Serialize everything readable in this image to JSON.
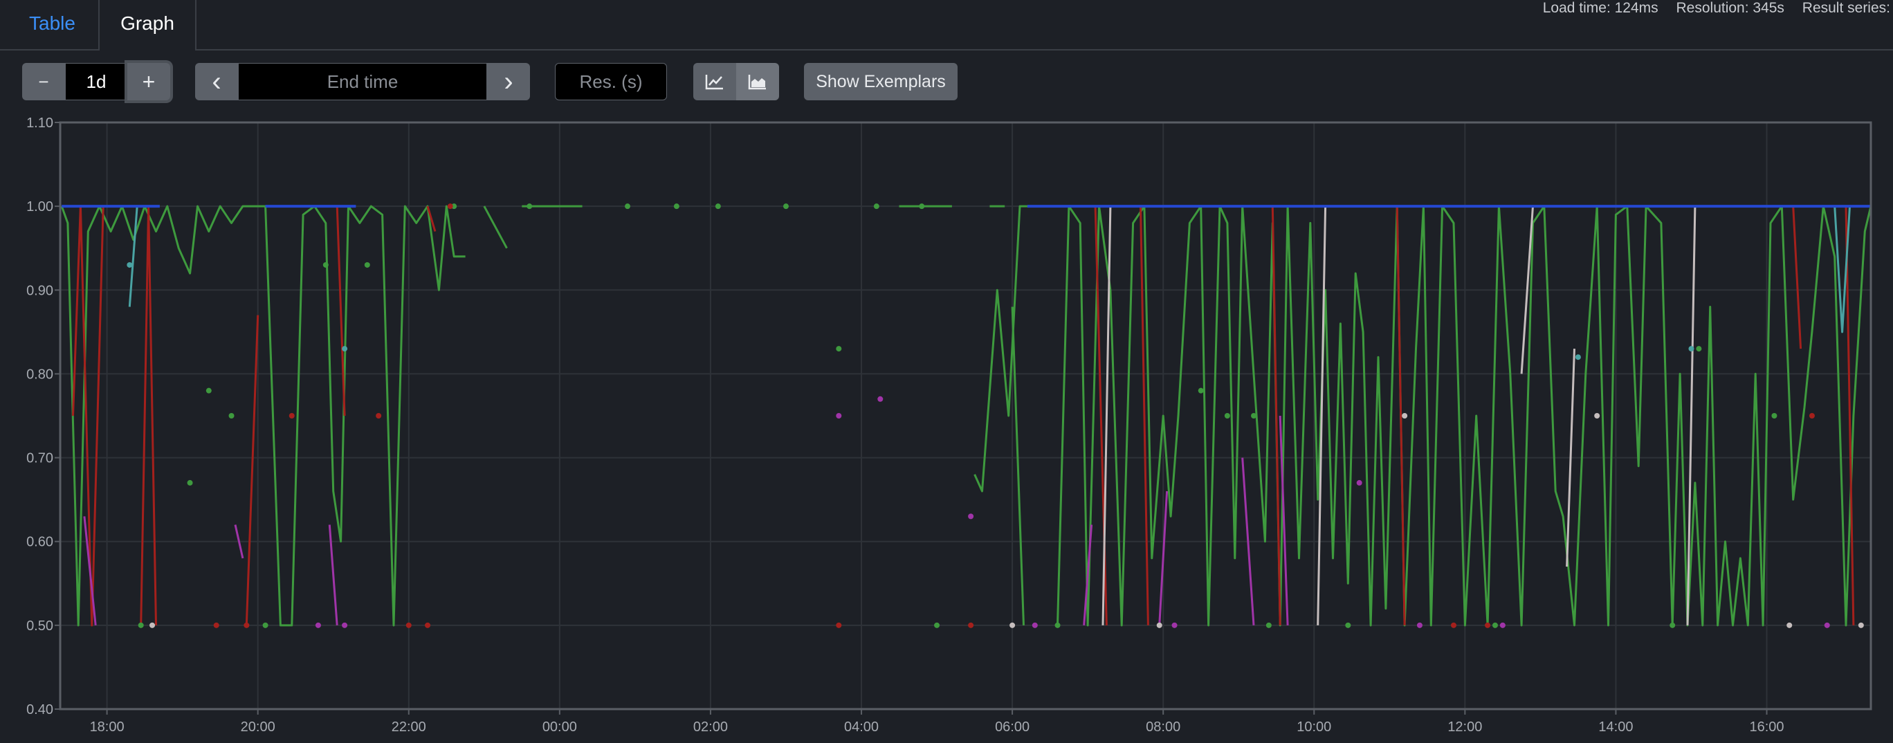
{
  "tabs": [
    {
      "label": "Table",
      "active": false
    },
    {
      "label": "Graph",
      "active": true
    }
  ],
  "stats": {
    "load_time": "Load time: 124ms",
    "resolution": "Resolution: 345s",
    "result_series": "Result series:"
  },
  "toolbar": {
    "range_value": "1d",
    "end_time_placeholder": "End time",
    "resolution_placeholder": "Res. (s)",
    "exemplars_label": "Show Exemplars",
    "minus_glyph": "−",
    "plus_glyph": "+",
    "prev_glyph": "‹",
    "next_glyph": "›"
  },
  "chart_data": {
    "type": "line",
    "ylim": [
      0.4,
      1.1
    ],
    "y_ticks": [
      "0.40",
      "0.50",
      "0.60",
      "0.70",
      "0.80",
      "0.90",
      "1.00",
      "1.10"
    ],
    "x_ticks": [
      "18:00",
      "20:00",
      "22:00",
      "00:00",
      "02:00",
      "04:00",
      "06:00",
      "08:00",
      "10:00",
      "12:00",
      "14:00",
      "16:00"
    ],
    "x_range_hours": [
      17.38,
      41.38
    ],
    "series": [
      {
        "color": "#3e9a3e",
        "points": [
          [
            17.4,
            1.0
          ],
          [
            17.48,
            0.98
          ],
          [
            17.62,
            0.5
          ],
          [
            17.75,
            0.97
          ],
          [
            17.9,
            1.0
          ],
          [
            18.05,
            0.97
          ],
          [
            18.2,
            1.0
          ],
          [
            18.35,
            0.96
          ],
          [
            18.5,
            1.0
          ],
          [
            18.65,
            0.97
          ],
          [
            18.8,
            1.0
          ],
          [
            18.95,
            0.95
          ],
          [
            19.1,
            0.92
          ],
          [
            19.2,
            1.0
          ],
          [
            19.35,
            0.97
          ],
          [
            19.5,
            1.0
          ],
          [
            19.65,
            0.98
          ],
          [
            19.8,
            1.0
          ],
          [
            20.1,
            1.0
          ],
          [
            20.3,
            0.5
          ],
          [
            20.45,
            0.5
          ],
          [
            20.6,
            0.99
          ],
          [
            20.75,
            1.0
          ],
          [
            20.9,
            0.98
          ],
          [
            21.0,
            0.66
          ],
          [
            21.1,
            0.6
          ],
          [
            21.2,
            1.0
          ],
          [
            21.35,
            0.98
          ],
          [
            21.5,
            1.0
          ],
          [
            21.65,
            0.99
          ],
          [
            21.8,
            0.5
          ],
          [
            21.95,
            1.0
          ],
          [
            22.1,
            0.98
          ],
          [
            22.25,
            1.0
          ],
          [
            22.4,
            0.9
          ],
          [
            22.5,
            1.0
          ],
          [
            22.6,
            0.94
          ],
          [
            22.75,
            0.94
          ],
          null,
          [
            23.0,
            1.0
          ],
          [
            23.3,
            0.95
          ],
          null,
          [
            23.5,
            1.0
          ],
          [
            24.3,
            1.0
          ],
          null,
          [
            28.5,
            1.0
          ],
          [
            29.2,
            1.0
          ],
          null,
          [
            29.7,
            1.0
          ],
          [
            29.9,
            1.0
          ],
          null,
          [
            30.0,
            0.88
          ],
          [
            30.15,
            0.5
          ],
          null,
          [
            30.3,
            1.0
          ],
          [
            30.6,
            1.0
          ],
          null,
          [
            29.5,
            0.68
          ],
          [
            29.6,
            0.66
          ],
          [
            29.8,
            0.9
          ],
          [
            29.95,
            0.75
          ],
          [
            30.1,
            1.0
          ],
          [
            30.4,
            1.0
          ],
          null,
          [
            30.6,
            0.5
          ],
          [
            30.75,
            1.0
          ],
          [
            30.9,
            0.98
          ],
          [
            31.0,
            0.5
          ],
          [
            31.15,
            1.0
          ],
          [
            31.3,
            0.9
          ],
          [
            31.45,
            0.5
          ],
          [
            31.6,
            0.98
          ],
          [
            31.75,
            1.0
          ],
          [
            31.85,
            0.58
          ],
          [
            32.0,
            0.75
          ],
          [
            32.1,
            0.63
          ],
          [
            32.2,
            0.75
          ],
          [
            32.35,
            0.98
          ],
          [
            32.5,
            1.0
          ],
          [
            32.6,
            0.5
          ],
          [
            32.75,
            1.0
          ],
          [
            32.85,
            0.98
          ],
          [
            32.95,
            0.58
          ],
          [
            33.05,
            1.0
          ],
          [
            33.2,
            0.8
          ],
          [
            33.35,
            0.6
          ],
          [
            33.45,
            0.98
          ],
          [
            33.55,
            0.5
          ],
          [
            33.65,
            1.0
          ],
          [
            33.8,
            0.58
          ],
          [
            33.95,
            0.98
          ],
          [
            34.05,
            0.65
          ],
          [
            34.15,
            0.9
          ],
          [
            34.25,
            0.58
          ],
          [
            34.35,
            0.86
          ],
          [
            34.45,
            0.55
          ],
          [
            34.55,
            0.92
          ],
          [
            34.65,
            0.85
          ],
          [
            34.75,
            0.5
          ],
          [
            34.85,
            0.82
          ],
          [
            34.95,
            0.52
          ],
          [
            35.1,
            1.0
          ],
          [
            35.2,
            0.5
          ],
          [
            35.35,
            0.83
          ],
          [
            35.45,
            1.0
          ],
          [
            35.55,
            0.5
          ],
          [
            35.7,
            1.0
          ],
          [
            35.85,
            0.98
          ],
          [
            36.0,
            0.5
          ],
          [
            36.15,
            0.75
          ],
          [
            36.3,
            0.5
          ],
          [
            36.45,
            1.0
          ],
          [
            36.6,
            0.8
          ],
          [
            36.75,
            0.5
          ],
          [
            36.9,
            0.98
          ],
          [
            37.05,
            1.0
          ],
          [
            37.2,
            0.66
          ],
          [
            37.3,
            0.63
          ],
          [
            37.45,
            0.5
          ],
          [
            37.6,
            0.8
          ],
          [
            37.75,
            1.0
          ],
          [
            37.9,
            0.5
          ],
          [
            38.0,
            0.99
          ],
          [
            38.15,
            1.0
          ],
          [
            38.3,
            0.69
          ],
          [
            38.4,
            1.0
          ],
          [
            38.6,
            0.98
          ],
          [
            38.75,
            0.5
          ],
          [
            38.85,
            0.8
          ],
          [
            38.95,
            0.5
          ],
          [
            39.05,
            0.67
          ],
          [
            39.15,
            0.5
          ],
          [
            39.25,
            0.88
          ],
          [
            39.35,
            0.5
          ],
          [
            39.45,
            0.6
          ],
          [
            39.55,
            0.5
          ],
          [
            39.65,
            0.58
          ],
          [
            39.75,
            0.5
          ],
          [
            39.85,
            0.8
          ],
          [
            39.95,
            0.5
          ],
          [
            40.05,
            0.98
          ],
          [
            40.2,
            1.0
          ],
          [
            40.35,
            0.65
          ],
          [
            40.5,
            0.76
          ],
          [
            40.6,
            0.85
          ],
          [
            40.75,
            1.0
          ],
          [
            40.9,
            0.94
          ],
          [
            41.05,
            0.5
          ],
          [
            41.15,
            0.75
          ],
          [
            41.3,
            0.97
          ],
          [
            41.38,
            1.0
          ]
        ]
      },
      {
        "color": "#a4201c",
        "points": [
          [
            17.55,
            0.75
          ],
          [
            17.65,
            1.0
          ],
          [
            17.8,
            0.5
          ],
          [
            17.95,
            1.0
          ],
          null,
          [
            18.45,
            0.5
          ],
          [
            18.55,
            1.0
          ],
          [
            18.65,
            0.5
          ],
          null,
          [
            19.85,
            0.5
          ],
          [
            20.0,
            0.87
          ],
          null,
          [
            21.05,
            1.0
          ],
          [
            21.15,
            0.75
          ],
          null,
          [
            22.25,
            1.0
          ],
          [
            22.35,
            0.97
          ],
          null,
          [
            31.1,
            1.0
          ],
          [
            31.25,
            0.5
          ],
          null,
          [
            31.7,
            1.0
          ],
          [
            31.8,
            0.5
          ],
          null,
          [
            33.45,
            1.0
          ],
          [
            33.55,
            0.5
          ],
          null,
          [
            35.1,
            1.0
          ],
          [
            35.2,
            0.5
          ],
          null,
          [
            40.35,
            1.0
          ],
          [
            40.45,
            0.83
          ],
          null,
          [
            41.05,
            1.0
          ],
          [
            41.15,
            0.5
          ]
        ]
      },
      {
        "color": "#a034a8",
        "points": [
          [
            17.7,
            0.63
          ],
          [
            17.85,
            0.5
          ],
          null,
          [
            19.7,
            0.62
          ],
          [
            19.8,
            0.58
          ],
          null,
          [
            20.95,
            0.62
          ],
          [
            21.05,
            0.5
          ],
          null,
          [
            30.95,
            0.5
          ],
          [
            31.05,
            0.62
          ],
          null,
          [
            31.95,
            0.5
          ],
          [
            32.05,
            0.66
          ],
          null,
          [
            33.05,
            0.7
          ],
          [
            33.2,
            0.5
          ],
          null,
          [
            33.55,
            0.75
          ],
          [
            33.65,
            0.5
          ]
        ]
      },
      {
        "color": "#c5bdbd",
        "points": [
          [
            31.2,
            0.5
          ],
          [
            31.3,
            1.0
          ],
          null,
          [
            34.05,
            0.5
          ],
          [
            34.15,
            1.0
          ],
          null,
          [
            36.75,
            0.8
          ],
          [
            36.9,
            1.0
          ],
          null,
          [
            37.35,
            0.57
          ],
          [
            37.45,
            0.83
          ],
          null,
          [
            38.95,
            0.5
          ],
          [
            39.05,
            1.0
          ]
        ]
      },
      {
        "color": "#4aa3a3",
        "points": [
          [
            18.3,
            0.88
          ],
          [
            18.4,
            1.0
          ],
          null,
          [
            40.9,
            1.0
          ],
          [
            41.0,
            0.85
          ],
          [
            41.1,
            1.0
          ]
        ]
      },
      {
        "color": "#2548d0",
        "points": [
          [
            17.4,
            1.0
          ],
          [
            18.7,
            1.0
          ],
          null,
          [
            20.1,
            1.0
          ],
          [
            21.3,
            1.0
          ],
          null,
          [
            30.2,
            1.0
          ],
          [
            41.38,
            1.0
          ]
        ]
      }
    ],
    "dots": [
      {
        "color": "#3e9a3e",
        "points": [
          [
            18.45,
            0.5
          ],
          [
            19.35,
            0.78
          ],
          [
            19.1,
            0.67
          ],
          [
            19.65,
            0.75
          ],
          [
            20.1,
            0.5
          ],
          [
            20.9,
            0.93
          ],
          [
            21.45,
            0.93
          ],
          [
            22.6,
            1.0
          ],
          [
            27.7,
            0.83
          ],
          [
            29.0,
            0.5
          ],
          [
            30.6,
            0.5
          ],
          [
            32.5,
            0.78
          ],
          [
            32.85,
            0.75
          ],
          [
            33.2,
            0.75
          ],
          [
            33.4,
            0.5
          ],
          [
            34.45,
            0.5
          ],
          [
            36.4,
            0.5
          ],
          [
            38.75,
            0.5
          ],
          [
            39.1,
            0.83
          ],
          [
            40.1,
            0.75
          ],
          [
            23.6,
            1.0
          ],
          [
            24.9,
            1.0
          ],
          [
            25.55,
            1.0
          ],
          [
            26.1,
            1.0
          ],
          [
            27.0,
            1.0
          ],
          [
            28.2,
            1.0
          ],
          [
            28.8,
            1.0
          ]
        ]
      },
      {
        "color": "#4aa3a3",
        "points": [
          [
            18.3,
            0.93
          ],
          [
            21.15,
            0.83
          ],
          [
            39.0,
            0.83
          ],
          [
            37.5,
            0.82
          ]
        ]
      },
      {
        "color": "#a4201c",
        "points": [
          [
            19.45,
            0.5
          ],
          [
            19.85,
            0.5
          ],
          [
            20.45,
            0.75
          ],
          [
            21.6,
            0.75
          ],
          [
            22.55,
            1.0
          ],
          [
            27.7,
            0.5
          ],
          [
            29.45,
            0.5
          ],
          [
            35.85,
            0.5
          ],
          [
            36.3,
            0.5
          ],
          [
            40.6,
            0.75
          ],
          [
            22.0,
            0.5
          ],
          [
            22.25,
            0.5
          ]
        ]
      },
      {
        "color": "#a034a8",
        "points": [
          [
            21.15,
            0.5
          ],
          [
            27.7,
            0.75
          ],
          [
            28.25,
            0.77
          ],
          [
            29.45,
            0.63
          ],
          [
            30.3,
            0.5
          ],
          [
            32.15,
            0.5
          ],
          [
            34.6,
            0.67
          ],
          [
            35.4,
            0.5
          ],
          [
            36.5,
            0.5
          ],
          [
            40.8,
            0.5
          ],
          [
            20.8,
            0.5
          ]
        ]
      },
      {
        "color": "#c5bdbd",
        "points": [
          [
            18.6,
            0.5
          ],
          [
            30.0,
            0.5
          ],
          [
            31.95,
            0.5
          ],
          [
            35.2,
            0.75
          ],
          [
            37.75,
            0.75
          ],
          [
            40.3,
            0.5
          ],
          [
            41.25,
            0.5
          ]
        ]
      }
    ]
  }
}
